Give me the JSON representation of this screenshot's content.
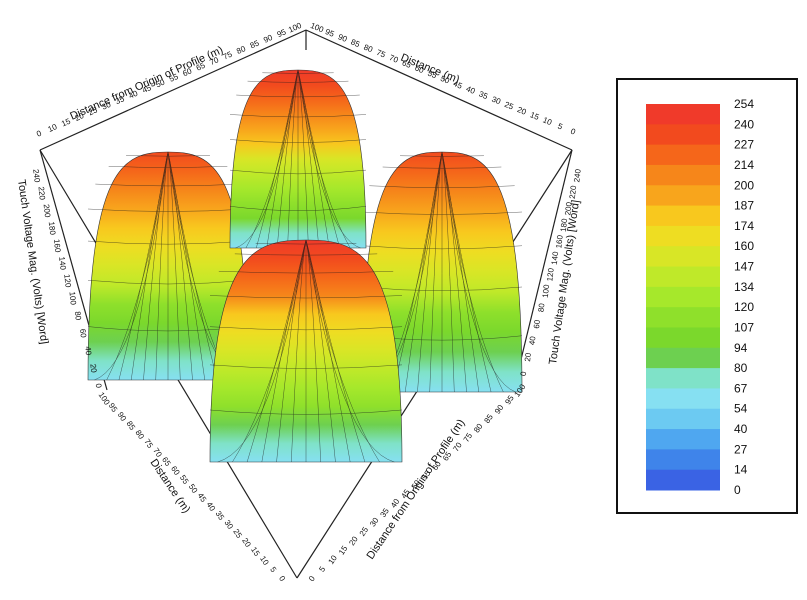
{
  "chart_data": {
    "type": "surface3d",
    "title": "",
    "zlabel_left": "Touch Voltage Mag. (Volts) [Word]",
    "zlabel_right": "Touch Voltage Mag. (Volts) [Word]",
    "axis_labels": {
      "back_left": "Distance from Origin of Profile (m)",
      "back_right": "Distance (m)",
      "front_left": "Distance (m)",
      "front_right": "Distance from Origin of Profile (m)"
    },
    "axis_ticks": {
      "back_left": [
        "0",
        "10",
        "15",
        "20",
        "25",
        "30",
        "35",
        "40",
        "45",
        "50",
        "55",
        "60",
        "65",
        "70",
        "75",
        "80",
        "85",
        "90",
        "95",
        "100"
      ],
      "back_right": [
        "100",
        "95",
        "90",
        "85",
        "80",
        "75",
        "70",
        "65",
        "60",
        "55",
        "50",
        "45",
        "40",
        "35",
        "30",
        "25",
        "20",
        "15",
        "10",
        "5",
        "0"
      ],
      "front_left": [
        "100",
        "95",
        "90",
        "85",
        "80",
        "75",
        "70",
        "65",
        "60",
        "55",
        "50",
        "45",
        "40",
        "35",
        "30",
        "25",
        "20",
        "15",
        "10",
        "5",
        "0"
      ],
      "front_right": [
        "0",
        "5",
        "10",
        "15",
        "20",
        "25",
        "30",
        "35",
        "40",
        "45",
        "50",
        "55",
        "60",
        "65",
        "70",
        "75",
        "80",
        "85",
        "90",
        "95",
        "100"
      ],
      "z_left": [
        "0",
        "20",
        "40",
        "60",
        "80",
        "100",
        "120",
        "140",
        "160",
        "180",
        "200",
        "220",
        "240"
      ],
      "z_right": [
        "0",
        "20",
        "40",
        "60",
        "80",
        "100",
        "120",
        "140",
        "160",
        "180",
        "200",
        "220",
        "240"
      ]
    },
    "z_range": [
      0,
      254
    ],
    "peaks": [
      {
        "name": "back",
        "value": 254
      },
      {
        "name": "left",
        "value": 240
      },
      {
        "name": "right",
        "value": 240
      },
      {
        "name": "front",
        "value": 248
      }
    ],
    "colorbar": {
      "levels": [
        254,
        240,
        227,
        214,
        200,
        187,
        174,
        160,
        147,
        134,
        120,
        107,
        94,
        80,
        67,
        54,
        40,
        27,
        14,
        0
      ],
      "colors": [
        "#f03a2a",
        "#f24a1e",
        "#f5661a",
        "#f6861a",
        "#f8a51c",
        "#f8c81e",
        "#eedd22",
        "#d8e626",
        "#bfe929",
        "#a6e82b",
        "#8fe02b",
        "#7bd82c",
        "#6dd050",
        "#7fe2c8",
        "#86e0f2",
        "#6ccaf2",
        "#4fa7f0",
        "#3f84ea",
        "#3a63e4"
      ]
    }
  }
}
